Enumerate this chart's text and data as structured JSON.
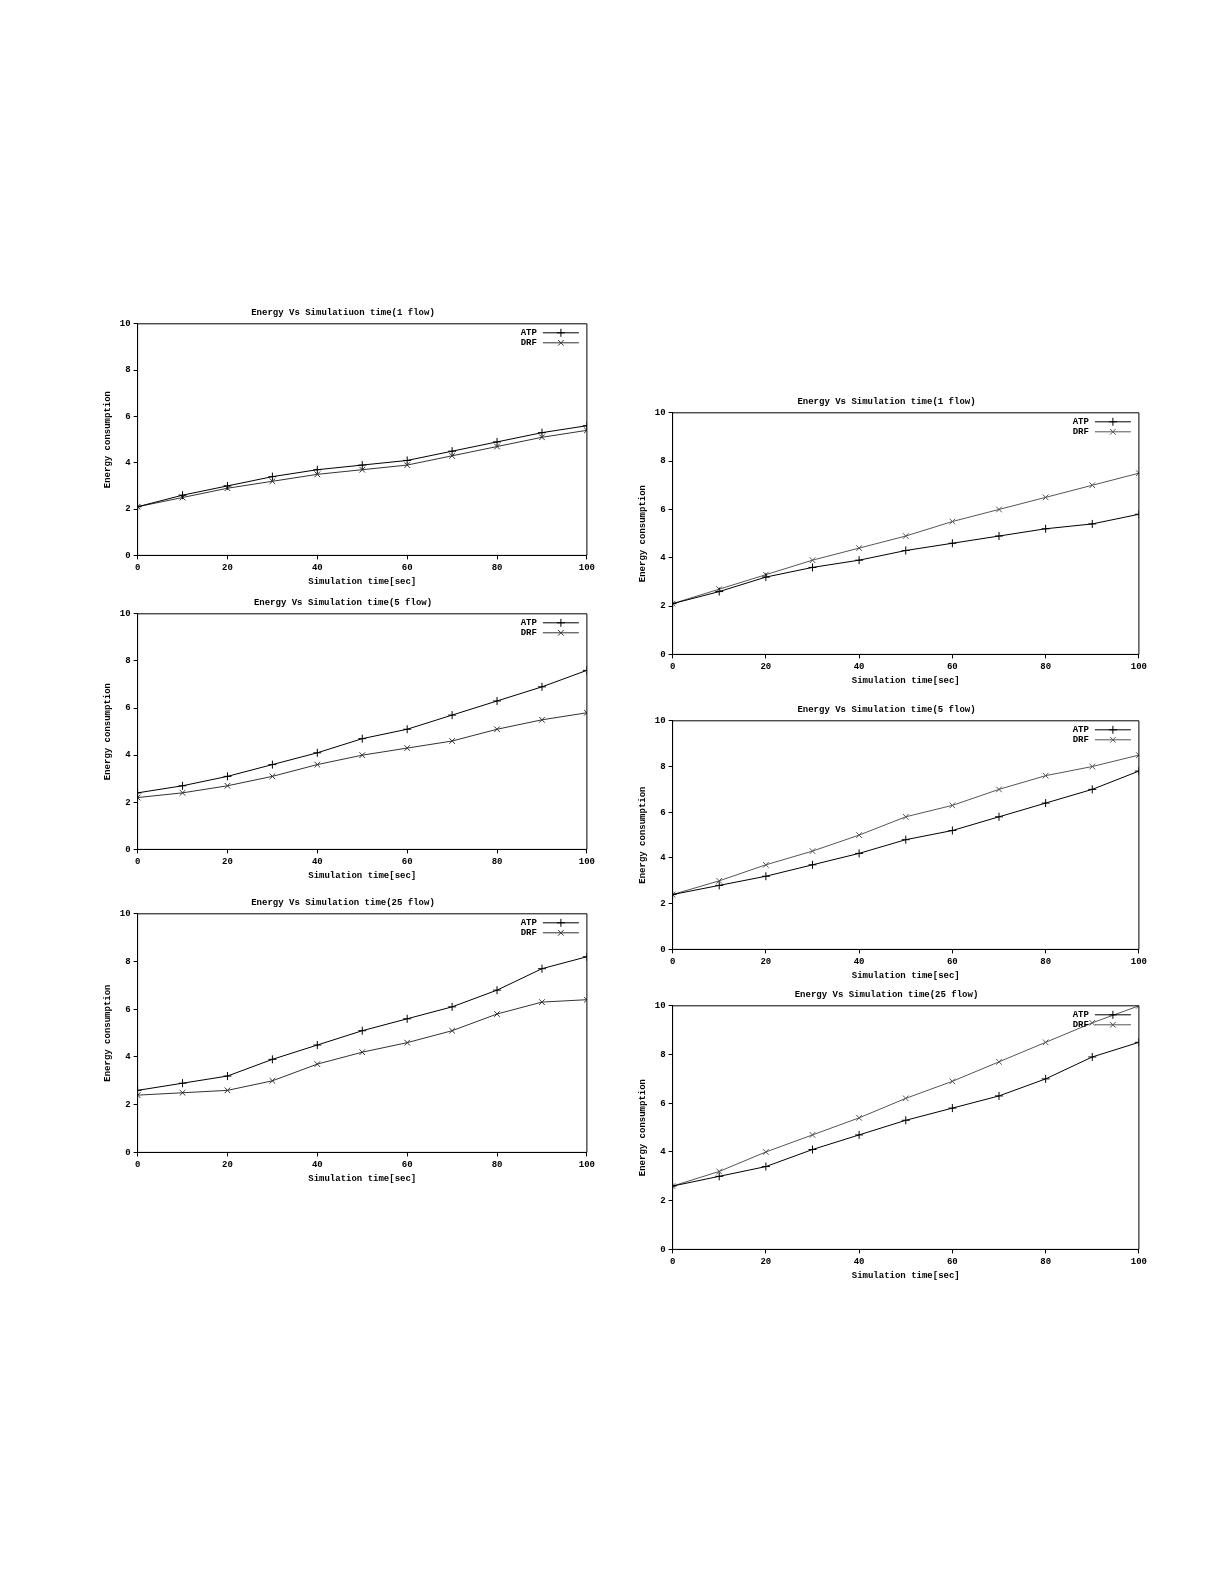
{
  "chart_data": [
    {
      "type": "line",
      "title": "Energy Vs Simulatiuon time(1 flow)",
      "xlabel": "Simulation time[sec]",
      "ylabel": "Energy consumption",
      "x": [
        0,
        10,
        20,
        30,
        40,
        50,
        60,
        70,
        80,
        90,
        100
      ],
      "xlim": [
        0,
        100
      ],
      "xticks": [
        0,
        20,
        40,
        60,
        80,
        100
      ],
      "ylim": [
        0,
        10
      ],
      "yticks": [
        0,
        2,
        4,
        6,
        8,
        10
      ],
      "legend": "top right",
      "series": [
        {
          "name": "ATP",
          "color": "#000000",
          "marker": "plus",
          "values": [
            2.1,
            2.6,
            3.0,
            3.4,
            3.7,
            3.9,
            4.1,
            4.5,
            4.9,
            5.3,
            5.6
          ]
        },
        {
          "name": "DRF",
          "color": "#333333",
          "marker": "cross",
          "values": [
            2.1,
            2.5,
            2.9,
            3.2,
            3.5,
            3.7,
            3.9,
            4.3,
            4.7,
            5.1,
            5.4
          ]
        }
      ]
    },
    {
      "type": "line",
      "title": "Energy Vs Simulation time(1 flow)",
      "xlabel": "Simulation time[sec]",
      "ylabel": "Energy consumption",
      "x": [
        0,
        10,
        20,
        30,
        40,
        50,
        60,
        70,
        80,
        90,
        100
      ],
      "xlim": [
        0,
        100
      ],
      "xticks": [
        0,
        20,
        40,
        60,
        80,
        100
      ],
      "ylim": [
        0,
        10
      ],
      "yticks": [
        0,
        2,
        4,
        6,
        8,
        10
      ],
      "legend": "top right",
      "series": [
        {
          "name": "ATP",
          "color": "#000000",
          "marker": "plus",
          "values": [
            2.1,
            2.6,
            3.2,
            3.6,
            3.9,
            4.3,
            4.6,
            4.9,
            5.2,
            5.4,
            5.8
          ]
        },
        {
          "name": "DRF",
          "color": "#555555",
          "marker": "cross",
          "values": [
            2.1,
            2.7,
            3.3,
            3.9,
            4.4,
            4.9,
            5.5,
            6.0,
            6.5,
            7.0,
            7.5
          ]
        }
      ]
    },
    {
      "type": "line",
      "title": "Energy Vs Simulation time(5 flow)",
      "xlabel": "Simulation time[sec]",
      "ylabel": "Energy consumption",
      "x": [
        0,
        10,
        20,
        30,
        40,
        50,
        60,
        70,
        80,
        90,
        100
      ],
      "xlim": [
        0,
        100
      ],
      "xticks": [
        0,
        20,
        40,
        60,
        80,
        100
      ],
      "ylim": [
        0,
        10
      ],
      "yticks": [
        0,
        2,
        4,
        6,
        8,
        10
      ],
      "legend": "top right",
      "series": [
        {
          "name": "ATP",
          "color": "#000000",
          "marker": "plus",
          "values": [
            2.4,
            2.7,
            3.1,
            3.6,
            4.1,
            4.7,
            5.1,
            5.7,
            6.3,
            6.9,
            7.6
          ]
        },
        {
          "name": "DRF",
          "color": "#333333",
          "marker": "cross",
          "values": [
            2.2,
            2.4,
            2.7,
            3.1,
            3.6,
            4.0,
            4.3,
            4.6,
            5.1,
            5.5,
            5.8
          ]
        }
      ]
    },
    {
      "type": "line",
      "title": "Energy Vs Simulation time(5 flow)",
      "xlabel": "Simulation time[sec]",
      "ylabel": "Energy consumption",
      "x": [
        0,
        10,
        20,
        30,
        40,
        50,
        60,
        70,
        80,
        90,
        100
      ],
      "xlim": [
        0,
        100
      ],
      "xticks": [
        0,
        20,
        40,
        60,
        80,
        100
      ],
      "ylim": [
        0,
        10
      ],
      "yticks": [
        0,
        2,
        4,
        6,
        8,
        10
      ],
      "legend": "top right",
      "series": [
        {
          "name": "ATP",
          "color": "#000000",
          "marker": "plus",
          "values": [
            2.4,
            2.8,
            3.2,
            3.7,
            4.2,
            4.8,
            5.2,
            5.8,
            6.4,
            7.0,
            7.8
          ]
        },
        {
          "name": "DRF",
          "color": "#555555",
          "marker": "cross",
          "values": [
            2.4,
            3.0,
            3.7,
            4.3,
            5.0,
            5.8,
            6.3,
            7.0,
            7.6,
            8.0,
            8.5
          ]
        }
      ]
    },
    {
      "type": "line",
      "title": "Energy Vs Simulation time(25 flow)",
      "xlabel": "Simulation time[sec]",
      "ylabel": "Energy consumption",
      "x": [
        0,
        10,
        20,
        30,
        40,
        50,
        60,
        70,
        80,
        90,
        100
      ],
      "xlim": [
        0,
        100
      ],
      "xticks": [
        0,
        20,
        40,
        60,
        80,
        100
      ],
      "ylim": [
        0,
        10
      ],
      "yticks": [
        0,
        2,
        4,
        6,
        8,
        10
      ],
      "legend": "top right",
      "series": [
        {
          "name": "ATP",
          "color": "#000000",
          "marker": "plus",
          "values": [
            2.6,
            2.9,
            3.2,
            3.9,
            4.5,
            5.1,
            5.6,
            6.1,
            6.8,
            7.7,
            8.2
          ]
        },
        {
          "name": "DRF",
          "color": "#333333",
          "marker": "cross",
          "values": [
            2.4,
            2.5,
            2.6,
            3.0,
            3.7,
            4.2,
            4.6,
            5.1,
            5.8,
            6.3,
            6.4
          ]
        }
      ]
    },
    {
      "type": "line",
      "title": "Energy Vs Simulation time(25 flow)",
      "xlabel": "Simulation time[sec]",
      "ylabel": "Energy consumption",
      "x": [
        0,
        10,
        20,
        30,
        40,
        50,
        60,
        70,
        80,
        90,
        100
      ],
      "xlim": [
        0,
        100
      ],
      "xticks": [
        0,
        20,
        40,
        60,
        80,
        100
      ],
      "ylim": [
        0,
        10
      ],
      "yticks": [
        0,
        2,
        4,
        6,
        8,
        10
      ],
      "legend": "top right",
      "series": [
        {
          "name": "ATP",
          "color": "#000000",
          "marker": "plus",
          "values": [
            2.6,
            3.0,
            3.4,
            4.1,
            4.7,
            5.3,
            5.8,
            6.3,
            7.0,
            7.9,
            8.5
          ]
        },
        {
          "name": "DRF",
          "color": "#555555",
          "marker": "cross",
          "values": [
            2.6,
            3.2,
            4.0,
            4.7,
            5.4,
            6.2,
            6.9,
            7.7,
            8.5,
            9.3,
            10.0
          ]
        }
      ]
    }
  ]
}
